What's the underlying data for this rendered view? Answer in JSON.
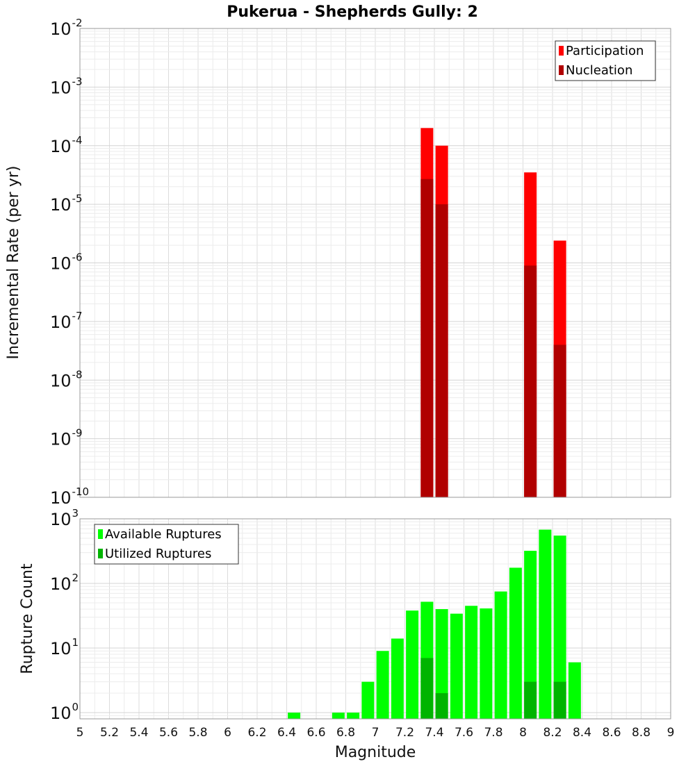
{
  "chart_data": [
    {
      "type": "bar",
      "title": "Pukerua - Shepherds Gully: 2",
      "ylabel": "Incremental Rate (per yr)",
      "yscale": "log",
      "ylim": [
        1e-10,
        0.01
      ],
      "xlim": [
        5,
        9
      ],
      "legend": "top-right",
      "grid": true,
      "y_ticks": [
        {
          "base": "10",
          "exp": "-10"
        },
        {
          "base": "10",
          "exp": "-9"
        },
        {
          "base": "10",
          "exp": "-8"
        },
        {
          "base": "10",
          "exp": "-7"
        },
        {
          "base": "10",
          "exp": "-6"
        },
        {
          "base": "10",
          "exp": "-5"
        },
        {
          "base": "10",
          "exp": "-4"
        },
        {
          "base": "10",
          "exp": "-3"
        },
        {
          "base": "10",
          "exp": "-2"
        }
      ],
      "series": [
        {
          "name": "Participation",
          "color": "#ff0000",
          "points": [
            {
              "x": 7.35,
              "y": 0.0002
            },
            {
              "x": 7.45,
              "y": 0.0001
            },
            {
              "x": 8.05,
              "y": 3.5e-05
            },
            {
              "x": 8.25,
              "y": 2.4e-06
            }
          ]
        },
        {
          "name": "Nucleation",
          "color": "#b00000",
          "points": [
            {
              "x": 7.35,
              "y": 2.7e-05
            },
            {
              "x": 7.45,
              "y": 1e-05
            },
            {
              "x": 8.05,
              "y": 9e-07
            },
            {
              "x": 8.25,
              "y": 4e-08
            }
          ]
        }
      ]
    },
    {
      "type": "bar",
      "title": "",
      "xlabel": "Magnitude",
      "ylabel": "Rupture Count",
      "yscale": "log",
      "ylim": [
        0.8,
        1000
      ],
      "xlim": [
        5,
        9
      ],
      "legend": "top-left",
      "grid": true,
      "y_ticks": [
        {
          "value": 1,
          "base": "10",
          "exp": "0"
        },
        {
          "value": 10,
          "base": "10",
          "exp": "1"
        },
        {
          "value": 100,
          "base": "10",
          "exp": "2"
        },
        {
          "value": 1000,
          "base": "10",
          "exp": "3"
        }
      ],
      "x_ticks": [
        "5",
        "5.2",
        "5.4",
        "5.6",
        "5.8",
        "6",
        "6.2",
        "6.4",
        "6.6",
        "6.8",
        "7",
        "7.2",
        "7.4",
        "7.6",
        "7.8",
        "8",
        "8.2",
        "8.4",
        "8.6",
        "8.8",
        "9"
      ],
      "series": [
        {
          "name": "Available Ruptures",
          "color": "#00ff00",
          "points": [
            {
              "x": 6.45,
              "y": 1
            },
            {
              "x": 6.75,
              "y": 1
            },
            {
              "x": 6.85,
              "y": 1
            },
            {
              "x": 6.95,
              "y": 3
            },
            {
              "x": 7.05,
              "y": 9
            },
            {
              "x": 7.15,
              "y": 14
            },
            {
              "x": 7.25,
              "y": 38
            },
            {
              "x": 7.35,
              "y": 52
            },
            {
              "x": 7.45,
              "y": 40
            },
            {
              "x": 7.55,
              "y": 34
            },
            {
              "x": 7.65,
              "y": 45
            },
            {
              "x": 7.75,
              "y": 41
            },
            {
              "x": 7.85,
              "y": 75
            },
            {
              "x": 7.95,
              "y": 175
            },
            {
              "x": 8.05,
              "y": 320
            },
            {
              "x": 8.15,
              "y": 680
            },
            {
              "x": 8.25,
              "y": 550
            },
            {
              "x": 8.35,
              "y": 6
            }
          ]
        },
        {
          "name": "Utilized Ruptures",
          "color": "#00b400",
          "points": [
            {
              "x": 7.35,
              "y": 7
            },
            {
              "x": 7.45,
              "y": 2
            },
            {
              "x": 8.05,
              "y": 3
            },
            {
              "x": 8.25,
              "y": 3
            }
          ]
        }
      ]
    }
  ]
}
